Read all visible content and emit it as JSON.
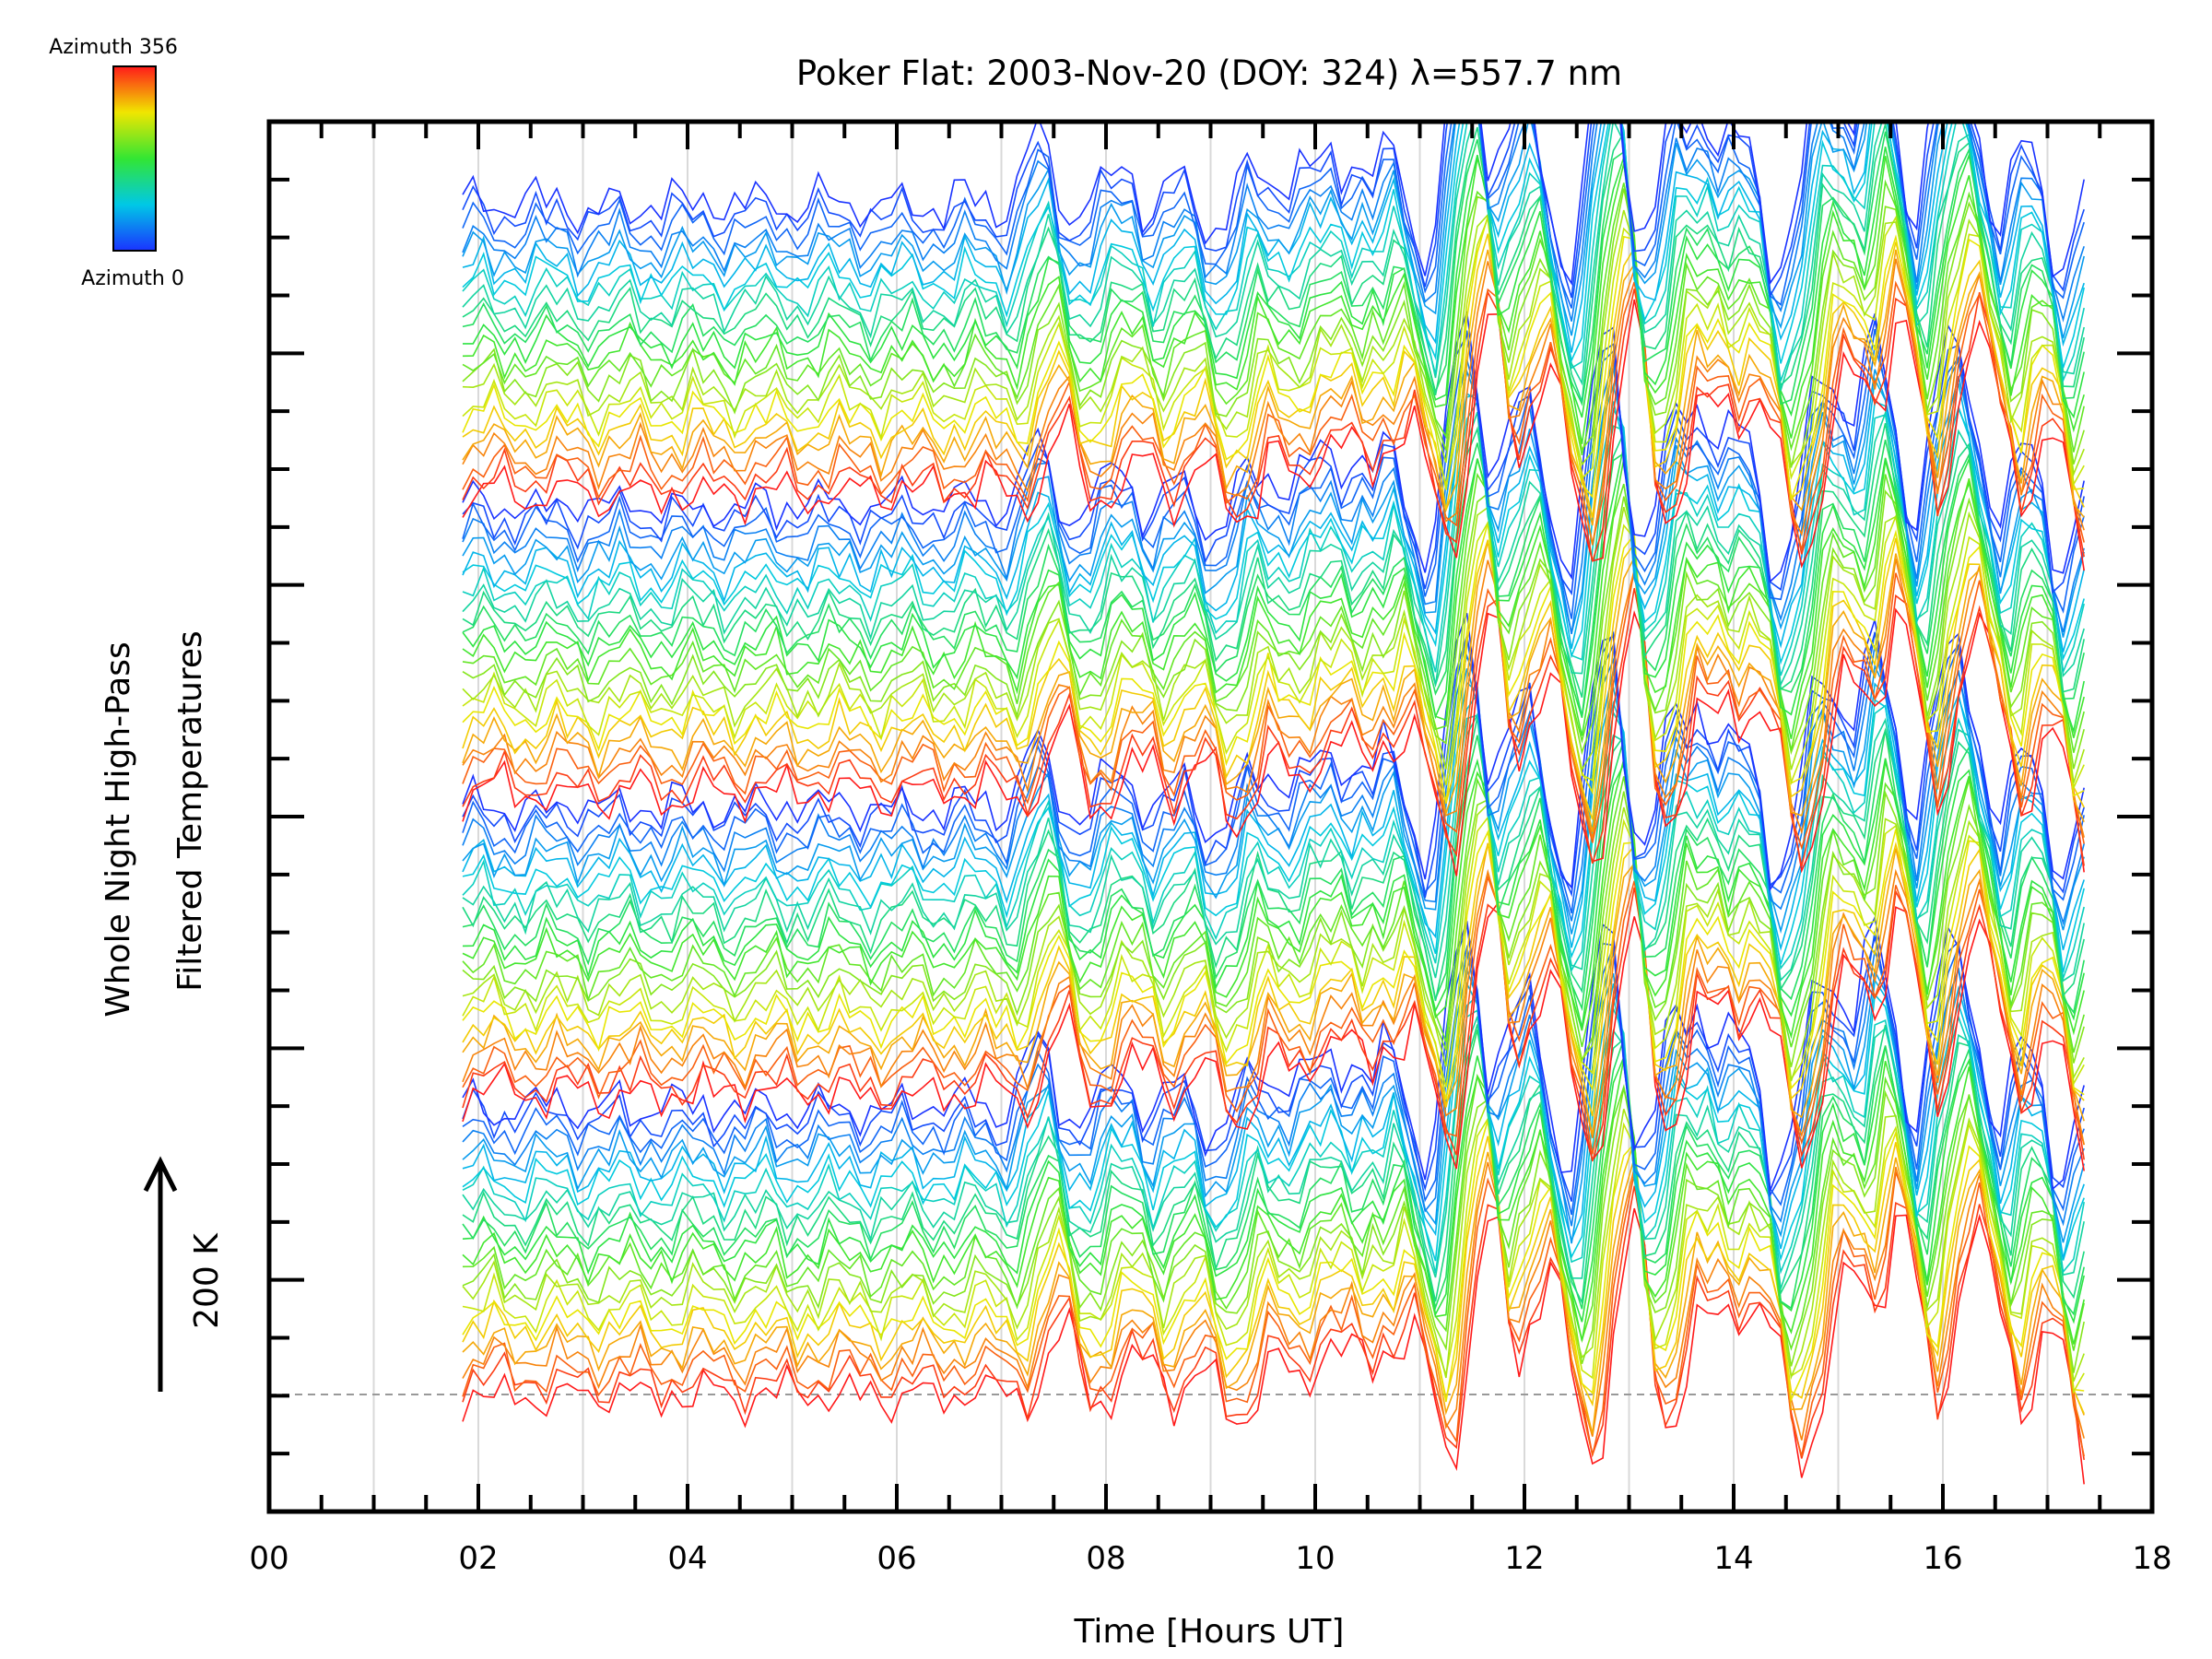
{
  "chart_data": {
    "type": "line",
    "title": "Poker Flat: 2003-Nov-20 (DOY: 324) λ=557.7 nm",
    "xlabel": "Time [Hours UT]",
    "ylabel_line1": "Whole Night High-Pass",
    "ylabel_line2": "Filtered Temperatures",
    "scale_annotation": "200 K",
    "xlim": [
      0,
      18
    ],
    "x_ticks": [
      0,
      2,
      4,
      6,
      8,
      10,
      12,
      14,
      16,
      18
    ],
    "x_tick_labels": [
      "00",
      "02",
      "04",
      "06",
      "08",
      "10",
      "12",
      "14",
      "16",
      "18"
    ],
    "x_minor_step": 0.5,
    "grid": "vertical lines every 1 hour",
    "baseline": "dashed horizontal line at lowest trace offset",
    "time_range": [
      1.85,
      17.4
    ],
    "num_traces": 96,
    "colormap": "rainbow (blue → cyan → green → yellow → red)",
    "colorbar": {
      "top_label": "Azimuth 356",
      "bottom_label": "Azimuth 0",
      "range": [
        0,
        356
      ]
    },
    "azimuth_cycle_per_group": 24,
    "wave_components": [
      {
        "center_hour": 7.6,
        "amplitude": 1.0
      },
      {
        "center_hour": 8.5,
        "amplitude": 0.6
      },
      {
        "center_hour": 10.0,
        "amplitude": 1.0
      },
      {
        "center_hour": 10.65,
        "amplitude": 1.3
      },
      {
        "center_hour": 11.7,
        "amplitude": 1.6
      },
      {
        "center_hour": 12.1,
        "amplitude": 1.4
      },
      {
        "center_hour": 13.1,
        "amplitude": 1.6
      },
      {
        "center_hour": 14.0,
        "amplitude": 1.9
      },
      {
        "center_hour": 15.25,
        "amplitude": 1.5
      },
      {
        "center_hour": 15.55,
        "amplitude": 1.8
      },
      {
        "center_hour": 16.2,
        "amplitude": 1.6
      },
      {
        "center_hour": 16.6,
        "amplitude": 1.2
      }
    ],
    "colors": {
      "axis": "#000000",
      "grid": "#d9d9d9",
      "baseline": "#999999"
    }
  }
}
